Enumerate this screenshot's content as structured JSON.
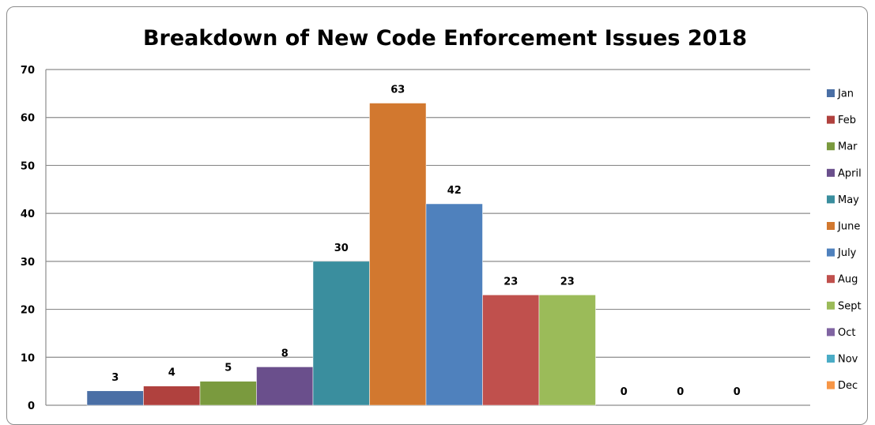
{
  "chart_data": {
    "type": "bar",
    "title": "Breakdown of New Code Enforcement Issues 2018",
    "xlabel": "",
    "ylabel": "",
    "ylim": [
      0,
      70
    ],
    "yticks": [
      0,
      10,
      20,
      30,
      40,
      50,
      60,
      70
    ],
    "grid": true,
    "legend_position": "right",
    "series": [
      {
        "name": "Jan",
        "value": 3,
        "color": "#4A6FA5"
      },
      {
        "name": "Feb",
        "value": 4,
        "color": "#B0413E"
      },
      {
        "name": "Mar",
        "value": 5,
        "color": "#7A9A3E"
      },
      {
        "name": "April",
        "value": 8,
        "color": "#6A4F8C"
      },
      {
        "name": "May",
        "value": 30,
        "color": "#3A8E9E"
      },
      {
        "name": "June",
        "value": 63,
        "color": "#D2782F"
      },
      {
        "name": "July",
        "value": 42,
        "color": "#4F81BD"
      },
      {
        "name": "Aug",
        "value": 23,
        "color": "#C0504D"
      },
      {
        "name": "Sept",
        "value": 23,
        "color": "#9BBB59"
      },
      {
        "name": "Oct",
        "value": 0,
        "color": "#8064A2"
      },
      {
        "name": "Nov",
        "value": 0,
        "color": "#4BACC6"
      },
      {
        "name": "Dec",
        "value": 0,
        "color": "#F79646"
      }
    ]
  }
}
